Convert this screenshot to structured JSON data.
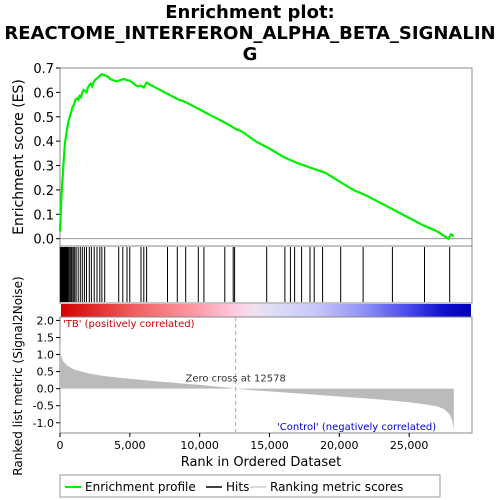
{
  "title_lines": [
    "Enrichment plot:",
    "REACTOME_INTERFERON_ALPHA_BETA_SIGNALIN",
    "G"
  ],
  "chart_data": {
    "type": "line",
    "x_range": [
      0,
      29500
    ],
    "xlabel": "Rank in Ordered Dataset",
    "x_ticks": [
      0,
      5000,
      10000,
      15000,
      20000,
      25000
    ],
    "x_tick_labels": [
      "0",
      "5,000",
      "10,000",
      "15,000",
      "20,000",
      "25,000"
    ],
    "es_panel": {
      "ylabel": "Enrichment score (ES)",
      "ylim": [
        -0.03,
        0.7
      ],
      "y_ticks": [
        0.0,
        0.1,
        0.2,
        0.3,
        0.4,
        0.5,
        0.6,
        0.7
      ],
      "y_tick_labels": [
        "0.0",
        "0.1",
        "0.2",
        "0.3",
        "0.4",
        "0.5",
        "0.6",
        "0.7"
      ],
      "series": [
        {
          "name": "Enrichment profile",
          "color": "#00ee00",
          "x": [
            0,
            50,
            100,
            150,
            200,
            250,
            300,
            350,
            400,
            500,
            600,
            700,
            800,
            900,
            1000,
            1100,
            1200,
            1300,
            1400,
            1500,
            1600,
            1700,
            1800,
            1900,
            2000,
            2100,
            2200,
            2300,
            2400,
            2500,
            2600,
            2700,
            2800,
            2900,
            3000,
            3100,
            3200,
            3400,
            3600,
            3800,
            4000,
            4200,
            4400,
            4600,
            4800,
            5000,
            5200,
            5400,
            5600,
            5800,
            6000,
            6200,
            6500,
            7000,
            7500,
            8000,
            8500,
            9000,
            9500,
            10000,
            10500,
            11000,
            11500,
            12000,
            12578,
            13000,
            14000,
            15000,
            16000,
            17000,
            18000,
            19000,
            20000,
            21000,
            22000,
            23000,
            24000,
            25000,
            26000,
            27000,
            27800,
            28000,
            28200
          ],
          "y": [
            0.03,
            0.1,
            0.17,
            0.22,
            0.26,
            0.31,
            0.35,
            0.39,
            0.41,
            0.45,
            0.48,
            0.5,
            0.52,
            0.54,
            0.55,
            0.57,
            0.575,
            0.57,
            0.585,
            0.58,
            0.6,
            0.61,
            0.605,
            0.6,
            0.62,
            0.63,
            0.635,
            0.625,
            0.64,
            0.65,
            0.655,
            0.66,
            0.665,
            0.67,
            0.675,
            0.672,
            0.67,
            0.665,
            0.655,
            0.65,
            0.645,
            0.648,
            0.652,
            0.655,
            0.65,
            0.648,
            0.64,
            0.63,
            0.625,
            0.628,
            0.62,
            0.64,
            0.63,
            0.615,
            0.6,
            0.585,
            0.57,
            0.56,
            0.545,
            0.53,
            0.515,
            0.5,
            0.485,
            0.47,
            0.45,
            0.44,
            0.4,
            0.37,
            0.335,
            0.31,
            0.29,
            0.27,
            0.235,
            0.2,
            0.175,
            0.145,
            0.115,
            0.085,
            0.055,
            0.03,
            0.0,
            0.018,
            0.01
          ]
        }
      ]
    },
    "hits": [
      30,
      80,
      120,
      160,
      200,
      240,
      280,
      320,
      360,
      400,
      450,
      500,
      560,
      620,
      700,
      780,
      860,
      950,
      1050,
      1150,
      1300,
      1450,
      1600,
      1750,
      1900,
      2100,
      2250,
      2450,
      2650,
      2850,
      3000,
      3200,
      4200,
      4500,
      4800,
      5000,
      5800,
      6000,
      6200,
      7700,
      8400,
      9000,
      9900,
      10300,
      11800,
      12400,
      12500,
      14800,
      16100,
      16500,
      16800,
      17300,
      17900,
      18200,
      18800,
      20100,
      21700,
      23800,
      26100,
      27900
    ],
    "metric_panel": {
      "ylabel": "Ranked list metric (Signal2Noise)",
      "ylim": [
        -1.3,
        2.1
      ],
      "y_ticks": [
        -1.0,
        -0.5,
        0.0,
        0.5,
        1.0,
        1.5,
        2.0
      ],
      "y_tick_labels": [
        "-1.0",
        "-0.5",
        "0.0",
        "0.5",
        "1.0",
        "1.5",
        "2.0"
      ],
      "zero_cross": 12578,
      "zero_cross_label": "Zero cross at 12578",
      "positive_label": "'TB' (positively correlated)",
      "negative_label": "'Control' (negatively correlated)",
      "profile_x": [
        0,
        50,
        200,
        500,
        1000,
        2000,
        3000,
        4000,
        5000,
        6000,
        7000,
        8000,
        9000,
        10000,
        11000,
        12000,
        12578,
        13000,
        14000,
        15000,
        16000,
        17000,
        18000,
        19000,
        20000,
        21000,
        22000,
        23000,
        24000,
        25000,
        26000,
        27000,
        27500,
        27900,
        28100,
        28200
      ],
      "profile_y": [
        1.45,
        1.0,
        0.82,
        0.68,
        0.56,
        0.45,
        0.38,
        0.33,
        0.29,
        0.25,
        0.21,
        0.18,
        0.14,
        0.11,
        0.07,
        0.03,
        0.0,
        -0.02,
        -0.05,
        -0.08,
        -0.11,
        -0.14,
        -0.17,
        -0.2,
        -0.23,
        -0.26,
        -0.29,
        -0.32,
        -0.36,
        -0.4,
        -0.45,
        -0.52,
        -0.6,
        -0.75,
        -0.95,
        -1.2
      ]
    },
    "legend": {
      "placement": "bottom",
      "entries": [
        {
          "label": "Enrichment profile",
          "color": "#00ee00"
        },
        {
          "label": "Hits",
          "color": "#000000"
        },
        {
          "label": "Ranking metric scores",
          "color": "#bbbbbb"
        }
      ]
    }
  }
}
